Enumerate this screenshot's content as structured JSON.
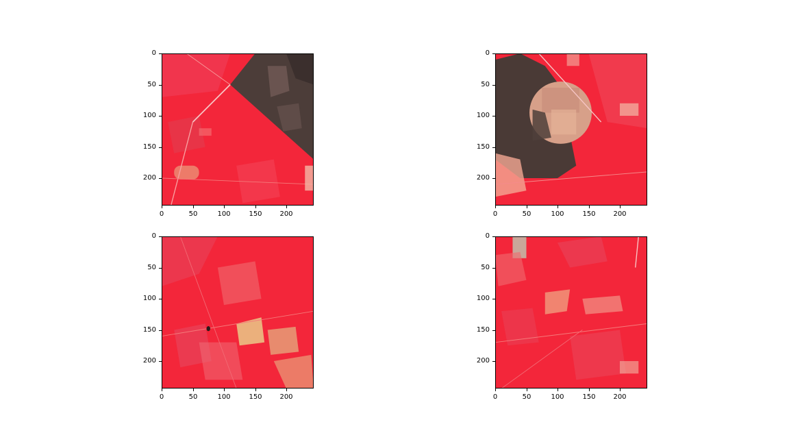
{
  "figure": {
    "panels": [
      {
        "id": "p1",
        "image_icon": "satellite-false-color-image",
        "xticks": [
          "0",
          "50",
          "100",
          "150",
          "200"
        ],
        "yticks": [
          "0",
          "50",
          "100",
          "150",
          "200"
        ]
      },
      {
        "id": "p2",
        "image_icon": "satellite-false-color-image",
        "xticks": [
          "0",
          "50",
          "100",
          "150",
          "200"
        ],
        "yticks": [
          "0",
          "50",
          "100",
          "150",
          "200"
        ]
      },
      {
        "id": "p3",
        "image_icon": "satellite-false-color-image",
        "xticks": [
          "0",
          "50",
          "100",
          "150",
          "200"
        ],
        "yticks": [
          "0",
          "50",
          "100",
          "150",
          "200"
        ]
      },
      {
        "id": "p4",
        "image_icon": "satellite-false-color-image",
        "xticks": [
          "0",
          "50",
          "100",
          "150",
          "200"
        ],
        "yticks": [
          "0",
          "50",
          "100",
          "150",
          "200"
        ]
      }
    ],
    "colors": {
      "vegetation": "#f52b3b",
      "bare_dark": "#4a3a36",
      "bare_light": "#e8a27f"
    }
  }
}
